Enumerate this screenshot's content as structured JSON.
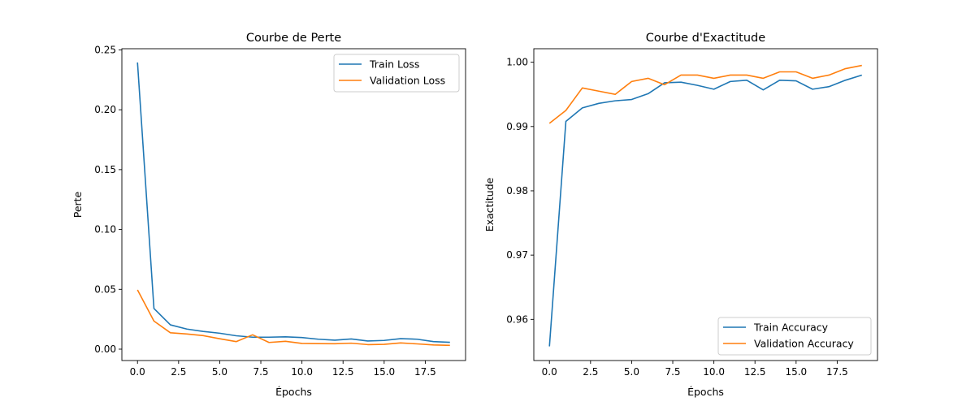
{
  "chart_data": [
    {
      "type": "line",
      "title": "Courbe de Perte",
      "xlabel": "Épochs",
      "ylabel": "Perte",
      "xlim": [
        -0.95,
        19.95
      ],
      "ylim": [
        -0.0095,
        0.251
      ],
      "xticks": [
        0.0,
        2.5,
        5.0,
        7.5,
        10.0,
        12.5,
        15.0,
        17.5
      ],
      "xtick_labels": [
        "0.0",
        "2.5",
        "5.0",
        "7.5",
        "10.0",
        "12.5",
        "15.0",
        "17.5"
      ],
      "yticks": [
        0.0,
        0.05,
        0.1,
        0.15,
        0.2,
        0.25
      ],
      "ytick_labels": [
        "0.00",
        "0.05",
        "0.10",
        "0.15",
        "0.20",
        "0.25"
      ],
      "legend_position": "upper right",
      "grid": false,
      "x": [
        0,
        1,
        2,
        3,
        4,
        5,
        6,
        7,
        8,
        9,
        10,
        11,
        12,
        13,
        14,
        15,
        16,
        17,
        18,
        19
      ],
      "series": [
        {
          "name": "Train Loss",
          "color": "#1f77b4",
          "values": [
            0.2395,
            0.034,
            0.0203,
            0.0168,
            0.0148,
            0.0133,
            0.0112,
            0.01,
            0.01,
            0.0103,
            0.0097,
            0.0083,
            0.0075,
            0.0085,
            0.0068,
            0.0073,
            0.0088,
            0.0083,
            0.0063,
            0.0057
          ]
        },
        {
          "name": "Validation Loss",
          "color": "#ff7f0e",
          "values": [
            0.0495,
            0.0235,
            0.0137,
            0.0127,
            0.0113,
            0.0087,
            0.0063,
            0.012,
            0.0056,
            0.0066,
            0.0048,
            0.0046,
            0.0045,
            0.005,
            0.0038,
            0.004,
            0.0052,
            0.0044,
            0.0035,
            0.0032
          ]
        }
      ]
    },
    {
      "type": "line",
      "title": "Courbe d'Exactitude",
      "xlabel": "Épochs",
      "ylabel": "Exactitude",
      "xlim": [
        -0.95,
        19.95
      ],
      "ylim": [
        0.9536,
        1.0021
      ],
      "xticks": [
        0.0,
        2.5,
        5.0,
        7.5,
        10.0,
        12.5,
        15.0,
        17.5
      ],
      "xtick_labels": [
        "0.0",
        "2.5",
        "5.0",
        "7.5",
        "10.0",
        "12.5",
        "15.0",
        "17.5"
      ],
      "yticks": [
        0.96,
        0.97,
        0.98,
        0.99,
        1.0
      ],
      "ytick_labels": [
        "0.96",
        "0.97",
        "0.98",
        "0.99",
        "1.00"
      ],
      "legend_position": "lower right",
      "grid": false,
      "x": [
        0,
        1,
        2,
        3,
        4,
        5,
        6,
        7,
        8,
        9,
        10,
        11,
        12,
        13,
        14,
        15,
        16,
        17,
        18,
        19
      ],
      "series": [
        {
          "name": "Train Accuracy",
          "color": "#1f77b4",
          "values": [
            0.9558,
            0.9908,
            0.9929,
            0.9936,
            0.994,
            0.9942,
            0.9951,
            0.9968,
            0.9969,
            0.9964,
            0.9958,
            0.997,
            0.9972,
            0.9957,
            0.9972,
            0.9971,
            0.9958,
            0.9962,
            0.9972,
            0.998
          ]
        },
        {
          "name": "Validation Accuracy",
          "color": "#ff7f0e",
          "values": [
            0.9905,
            0.9925,
            0.996,
            0.9955,
            0.995,
            0.997,
            0.9975,
            0.9965,
            0.998,
            0.998,
            0.9975,
            0.998,
            0.998,
            0.9975,
            0.9985,
            0.9985,
            0.9975,
            0.998,
            0.999,
            0.9995
          ]
        }
      ]
    }
  ]
}
